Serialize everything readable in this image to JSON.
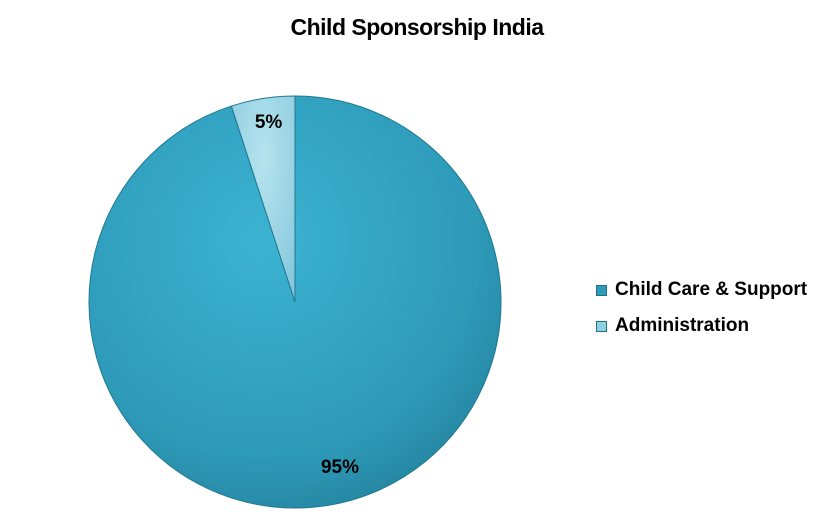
{
  "chart_data": {
    "type": "pie",
    "title": "Child Sponsorship India",
    "slices": [
      {
        "label": "Child Care & Support",
        "value": 95,
        "display": "95%",
        "color": "#2e9bb8"
      },
      {
        "label": "Administration",
        "value": 5,
        "display": "5%",
        "color": "#8fd0e3"
      }
    ],
    "legend_position": "right"
  }
}
